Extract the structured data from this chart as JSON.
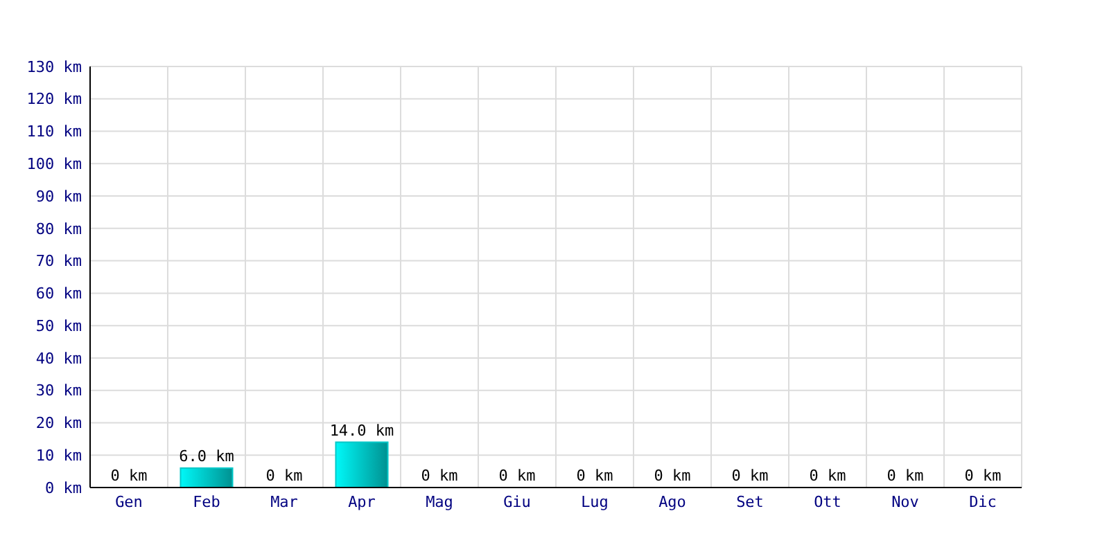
{
  "chart_data": {
    "type": "bar",
    "categories": [
      "Gen",
      "Feb",
      "Mar",
      "Apr",
      "Mag",
      "Giu",
      "Lug",
      "Ago",
      "Set",
      "Ott",
      "Nov",
      "Dic"
    ],
    "values": [
      0,
      6,
      0,
      14,
      0,
      0,
      0,
      0,
      0,
      0,
      0,
      0
    ],
    "value_labels": [
      "0 km",
      "6.0 km",
      "0 km",
      "14.0 km",
      "0 km",
      "0 km",
      "0 km",
      "0 km",
      "0 km",
      "0 km",
      "0 km",
      "0 km"
    ],
    "color": "#00c8c8",
    "ylim": [
      0,
      130
    ],
    "yticks": [
      {
        "value": 0,
        "label": "0 km"
      },
      {
        "value": 10,
        "label": "10 km"
      },
      {
        "value": 20,
        "label": "20 km"
      },
      {
        "value": 30,
        "label": "30 km"
      },
      {
        "value": 40,
        "label": "40 km"
      },
      {
        "value": 50,
        "label": "50 km"
      },
      {
        "value": 60,
        "label": "60 km"
      },
      {
        "value": 70,
        "label": "70 km"
      },
      {
        "value": 80,
        "label": "80 km"
      },
      {
        "value": 90,
        "label": "90 km"
      },
      {
        "value": 100,
        "label": "100 km"
      },
      {
        "value": 110,
        "label": "110 km"
      },
      {
        "value": 120,
        "label": "120 km"
      },
      {
        "value": 130,
        "label": "130 km"
      }
    ],
    "grid": true
  }
}
